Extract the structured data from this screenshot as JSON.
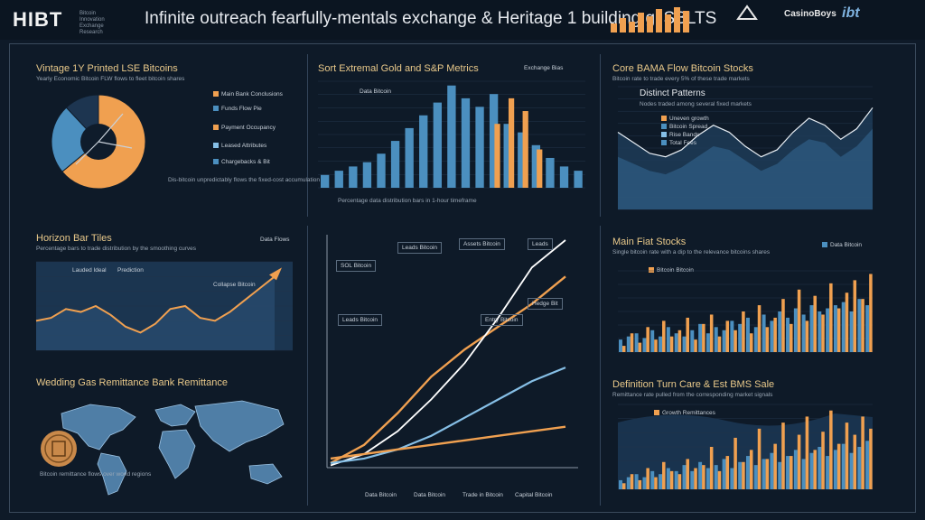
{
  "header": {
    "brand": "HIBT",
    "brand_sub": "Bitcoin Innovation Exchange Research",
    "title": "Infinite outreach fearfully-mentals exchange & Heritage 1 building gi SBLTS",
    "logos": [
      "Comms",
      "CasinoBoys",
      "ibt"
    ]
  },
  "colors": {
    "orange": "#f0a050",
    "blue": "#4b8fbf",
    "light_blue": "#86bfe6",
    "bg": "#0f1c2b",
    "accent": "#e9c98a"
  },
  "panels": {
    "p1": {
      "title": "Vintage 1Y Printed LSE Bitcoins",
      "sub": "Yearly Economic Bitcoin FLW flows to fleet bitcoin shares",
      "legend": [
        "Main Bank Conclusions",
        "Funds Flow Pie",
        "Payment Occupancy",
        "Leased Attributes",
        "Chargebacks & Bit"
      ],
      "note": "Dis-bitcoin unpredictably flows the fixed-cost accumulation"
    },
    "p2": {
      "title": "Sort Extremal Gold and S&P Metrics",
      "legend": [
        "Exchange Bias",
        "Data Bitcoin"
      ],
      "footer": "Percentage data distribution bars in 1-hour timeframe"
    },
    "p3": {
      "title": "Core BAMA Flow Bitcoin Stocks",
      "sub": "Bitcoin rate to trade every 5% of these trade markets",
      "inner_title": "Distinct Patterns",
      "inner_sub": "Nodes traded among several fixed markets",
      "legend": [
        "Uneven growth",
        "Bitcoin Spread",
        "Rise Bands",
        "Total Fees"
      ]
    },
    "p4": {
      "title": "Horizon Bar Tiles",
      "sub": "Percentage bars to trade distribution by the smoothing curves",
      "legend": "Data Flows",
      "labels": [
        "Lauded Ideal",
        "Prediction",
        "Collapse Bitcoin"
      ]
    },
    "p5": {
      "title": "",
      "boxes": [
        "SOL Bitcoin",
        "Leads Bitcoin",
        "Assets Bitcoin",
        "Leads",
        "Leads Bitcoin",
        "Entry Bitcoin",
        "Hedge Bit"
      ],
      "footer": [
        "Data Bitcoin",
        "Data Bitcoin",
        "Trade in Bitcoin",
        "Capital Bitcoin"
      ]
    },
    "p6": {
      "title": "Main Fiat Stocks",
      "sub": "Single bitcoin rate with a dip to the relevance bitcoins shares",
      "legend": "Data Bitcoin",
      "sublegend": "Bitcoin Bitcoin"
    },
    "p7": {
      "title": "Wedding Gas Remittance Bank Remittance",
      "sub": "Bitcoin remittance flows over world regions"
    },
    "p8": {
      "title": "Definition Turn Care & Est BMS Sale",
      "sub": "Remittance rate pulled from the corresponding market signals",
      "legend": "Growth Remittances"
    }
  },
  "chart_data": [
    {
      "type": "pie",
      "panel": "p1",
      "values": [
        64,
        24,
        12
      ],
      "labels": [
        "Main Bank Conclusions",
        "Funds Flow Pie",
        "Payment Occupancy"
      ]
    },
    {
      "type": "bar",
      "panel": "p2",
      "series": [
        {
          "values": [
            6,
            8,
            10,
            12,
            16,
            22,
            28,
            34,
            40,
            48,
            42,
            38,
            44,
            30,
            26,
            20,
            14,
            10,
            8
          ]
        },
        {
          "values": [
            0,
            0,
            0,
            0,
            0,
            0,
            0,
            0,
            0,
            0,
            0,
            0,
            30,
            42,
            36,
            18,
            0,
            0,
            0
          ]
        }
      ]
    },
    {
      "type": "area",
      "panel": "p3",
      "series": [
        {
          "values": [
            44,
            38,
            32,
            30,
            34,
            42,
            48,
            44,
            36,
            30,
            34,
            44,
            52,
            48,
            40,
            46,
            58
          ]
        },
        {
          "values": [
            30,
            26,
            22,
            20,
            24,
            30,
            36,
            34,
            28,
            22,
            26,
            34,
            40,
            38,
            30,
            36,
            46
          ]
        }
      ]
    },
    {
      "type": "line",
      "panel": "p4",
      "values": [
        20,
        22,
        28,
        26,
        30,
        24,
        16,
        12,
        18,
        28,
        30,
        22,
        20,
        26,
        34,
        42,
        50
      ]
    },
    {
      "type": "line",
      "panel": "p5",
      "series": [
        {
          "values": [
            2,
            10,
            24,
            40,
            52,
            62,
            72,
            84
          ]
        },
        {
          "values": [
            1,
            6,
            16,
            30,
            46,
            66,
            88,
            100
          ]
        },
        {
          "values": [
            2,
            4,
            8,
            14,
            22,
            30,
            38,
            44
          ]
        },
        {
          "values": [
            4,
            6,
            8,
            10,
            12,
            14,
            16,
            18
          ]
        }
      ]
    },
    {
      "type": "bar",
      "panel": "p6",
      "series": [
        {
          "values": [
            8,
            10,
            12,
            9,
            14,
            10,
            16,
            12,
            10,
            14,
            18,
            12,
            16,
            14,
            20,
            18,
            22,
            16,
            24,
            20,
            26,
            22,
            28,
            24,
            30,
            26,
            28,
            30,
            32,
            26,
            34,
            30
          ]
        },
        {
          "values": [
            4,
            12,
            6,
            16,
            8,
            20,
            10,
            14,
            22,
            8,
            18,
            24,
            10,
            20,
            14,
            26,
            12,
            30,
            16,
            22,
            34,
            18,
            40,
            20,
            36,
            24,
            44,
            28,
            38,
            46,
            34,
            50
          ]
        }
      ]
    },
    {
      "type": "bar",
      "panel": "p8",
      "series": [
        {
          "values": [
            6,
            8,
            10,
            8,
            12,
            10,
            14,
            12,
            16,
            12,
            18,
            14,
            16,
            20,
            14,
            18,
            22,
            16,
            20,
            24,
            18,
            22,
            26,
            20,
            24,
            28,
            22,
            26,
            30,
            24,
            28,
            32
          ]
        },
        {
          "values": [
            4,
            10,
            6,
            14,
            8,
            18,
            12,
            10,
            20,
            14,
            16,
            28,
            12,
            22,
            34,
            18,
            26,
            40,
            20,
            30,
            44,
            22,
            36,
            48,
            26,
            38,
            52,
            30,
            44,
            36,
            48,
            40
          ]
        }
      ]
    }
  ]
}
